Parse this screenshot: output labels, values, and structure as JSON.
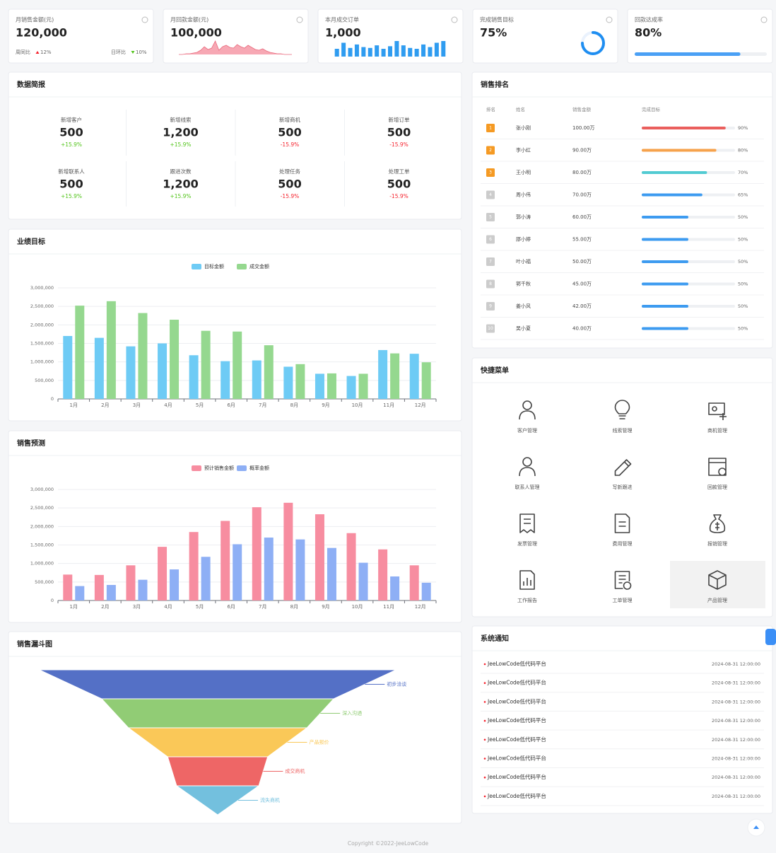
{
  "stat_cards": [
    {
      "title": "月销售金额(元)",
      "value": "120,000",
      "footer": [
        {
          "label": "周同比",
          "change": "12%",
          "trend": "up"
        },
        {
          "label": "日环比",
          "change": "10%",
          "trend": "down"
        }
      ]
    },
    {
      "title": "月回款金额(元)",
      "value": "100,000",
      "sparkline": {
        "type": "area",
        "color": "#f48b9b",
        "values": [
          3,
          3,
          4,
          4,
          5,
          6,
          9,
          14,
          10,
          12,
          22,
          9,
          14,
          16,
          13,
          12,
          17,
          14,
          12,
          16,
          13,
          10,
          9,
          11,
          8,
          6,
          5,
          4,
          4,
          3,
          3,
          3
        ]
      }
    },
    {
      "title": "本月成交订单",
      "value": "1,000",
      "sparkline": {
        "type": "bar",
        "color": "#2f9cf0",
        "values": [
          9,
          16,
          10,
          14,
          11,
          10,
          13,
          9,
          12,
          18,
          13,
          10,
          9,
          14,
          11,
          16,
          18
        ]
      }
    },
    {
      "title": "完成销售目标",
      "value": "75%",
      "progress": {
        "type": "ring",
        "value": 75,
        "color": "#1f8ef1"
      }
    },
    {
      "title": "回款达成率",
      "value": "80%",
      "progress": {
        "type": "bar",
        "value": 80,
        "color": "#4aa0f5"
      }
    }
  ],
  "data_report": {
    "title": "数据简报",
    "items": [
      {
        "label": "新增客户",
        "value": "500",
        "change": "+15.9%",
        "trend": "up"
      },
      {
        "label": "新增线索",
        "value": "1,200",
        "change": "+15.9%",
        "trend": "up"
      },
      {
        "label": "新增商机",
        "value": "500",
        "change": "-15.9%",
        "trend": "down"
      },
      {
        "label": "新增订单",
        "value": "500",
        "change": "-15.9%",
        "trend": "down"
      },
      {
        "label": "新增联系人",
        "value": "500",
        "change": "+15.9%",
        "trend": "up"
      },
      {
        "label": "跟进次数",
        "value": "1,200",
        "change": "+15.9%",
        "trend": "up"
      },
      {
        "label": "处理任务",
        "value": "500",
        "change": "-15.9%",
        "trend": "down"
      },
      {
        "label": "处理工单",
        "value": "500",
        "change": "-15.9%",
        "trend": "down"
      }
    ]
  },
  "ranking": {
    "title": "销售排名",
    "columns": [
      "排名",
      "姓名",
      "销售金额",
      "完成目标"
    ],
    "rows": [
      {
        "rank": "1",
        "name": "张小刚",
        "amount": "100.00万",
        "progress": {
          "value": 90,
          "label": "90%"
        },
        "badge_color": "#f59a23",
        "bar_color": "#ea5f5d"
      },
      {
        "rank": "2",
        "name": "李小红",
        "amount": "90.00万",
        "progress": {
          "value": 80,
          "label": "80%"
        },
        "badge_color": "#f59a23",
        "bar_color": "#f6a24c"
      },
      {
        "rank": "3",
        "name": "王小明",
        "amount": "80.00万",
        "progress": {
          "value": 70,
          "label": "70%"
        },
        "badge_color": "#f59a23",
        "bar_color": "#52cbd2"
      },
      {
        "rank": "4",
        "name": "周小伟",
        "amount": "70.00万",
        "progress": {
          "value": 65,
          "label": "65%"
        },
        "badge_color": "#cccccc",
        "bar_color": "#3d9bf0"
      },
      {
        "rank": "5",
        "name": "郭小涛",
        "amount": "60.00万",
        "progress": {
          "value": 50,
          "label": "50%"
        },
        "badge_color": "#cccccc",
        "bar_color": "#3d9bf0"
      },
      {
        "rank": "6",
        "name": "邵小婷",
        "amount": "55.00万",
        "progress": {
          "value": 50,
          "label": "50%"
        },
        "badge_color": "#cccccc",
        "bar_color": "#3d9bf0"
      },
      {
        "rank": "7",
        "name": "叶小福",
        "amount": "50.00万",
        "progress": {
          "value": 50,
          "label": "50%"
        },
        "badge_color": "#cccccc",
        "bar_color": "#3d9bf0"
      },
      {
        "rank": "8",
        "name": "郭千秋",
        "amount": "45.00万",
        "progress": {
          "value": 50,
          "label": "50%"
        },
        "badge_color": "#cccccc",
        "bar_color": "#3d9bf0"
      },
      {
        "rank": "9",
        "name": "姜小风",
        "amount": "42.00万",
        "progress": {
          "value": 50,
          "label": "50%"
        },
        "badge_color": "#cccccc",
        "bar_color": "#3d9bf0"
      },
      {
        "rank": "10",
        "name": "吴小夏",
        "amount": "40.00万",
        "progress": {
          "value": 50,
          "label": "50%"
        },
        "badge_color": "#cccccc",
        "bar_color": "#3d9bf0"
      }
    ]
  },
  "chart_data": [
    {
      "type": "bar",
      "title": "业绩目标",
      "categories": [
        "1月",
        "2月",
        "3月",
        "4月",
        "5月",
        "6月",
        "7月",
        "8月",
        "9月",
        "10月",
        "11月",
        "12月"
      ],
      "series": [
        {
          "name": "目标金额",
          "color": "#6ecbf5",
          "values": [
            1700000,
            1650000,
            1420000,
            1500000,
            1180000,
            1020000,
            1040000,
            870000,
            680000,
            620000,
            1320000,
            1220000
          ]
        },
        {
          "name": "成交金额",
          "color": "#95d88f",
          "values": [
            2520000,
            2640000,
            2320000,
            2140000,
            1840000,
            1820000,
            1450000,
            940000,
            690000,
            680000,
            1230000,
            990000
          ]
        }
      ],
      "ylim": [
        0,
        3000000
      ],
      "yticks": [
        0,
        {
          "value": 500000,
          "label": "500,000"
        },
        {
          "value": 1000000,
          "label": "1,000,000"
        },
        {
          "value": 1500000,
          "label": "1,500,000"
        },
        {
          "value": 2000000,
          "label": "2,000,000"
        },
        {
          "value": 2500000,
          "label": "2,500,000"
        },
        {
          "value": 3000000,
          "label": "3,000,000"
        }
      ],
      "grid": true
    },
    {
      "type": "bar",
      "title": "销售预测",
      "categories": [
        "1月",
        "2月",
        "3月",
        "4月",
        "5月",
        "6月",
        "7月",
        "8月",
        "9月",
        "10月",
        "11月",
        "12月"
      ],
      "series": [
        {
          "name": "预计销售金额",
          "color": "#f78da0",
          "values": [
            700000,
            690000,
            950000,
            1450000,
            1850000,
            2150000,
            2520000,
            2640000,
            2330000,
            1820000,
            1380000,
            950000
          ]
        },
        {
          "name": "概率金额",
          "color": "#8eaff5",
          "values": [
            390000,
            420000,
            560000,
            840000,
            1180000,
            1520000,
            1700000,
            1650000,
            1420000,
            1020000,
            650000,
            480000
          ]
        }
      ],
      "ylim": [
        0,
        3000000
      ],
      "yticks": [
        0,
        {
          "value": 500000,
          "label": "500,000"
        },
        {
          "value": 1000000,
          "label": "1,000,000"
        },
        {
          "value": 1500000,
          "label": "1,500,000"
        },
        {
          "value": 2000000,
          "label": "2,000,000"
        },
        {
          "value": 2500000,
          "label": "2,500,000"
        },
        {
          "value": 3000000,
          "label": "3,000,000"
        }
      ],
      "grid": true
    },
    {
      "type": "funnel",
      "title": "销售漏斗图",
      "categories": [
        "初步洽谈",
        "深入沟通",
        "产品报价",
        "成交商机",
        "流失商机"
      ],
      "values": [
        100,
        65,
        50,
        28,
        23
      ],
      "colors": [
        "#5470c6",
        "#91cc75",
        "#fac858",
        "#ee6666",
        "#73c0de"
      ]
    }
  ],
  "quick_menu": {
    "title": "快捷菜单",
    "items": [
      "客户管理",
      "线索管理",
      "商机管理",
      "联系人管理",
      "写新跟进",
      "回款管理",
      "发票管理",
      "费用管理",
      "报销管理",
      "工作报告",
      "工单管理",
      "产品管理"
    ]
  },
  "notices": {
    "title": "系统通知",
    "items": [
      {
        "text": "JeeLowCode低代码平台",
        "time": "2024-08-31 12:00:00"
      },
      {
        "text": "JeeLowCode低代码平台",
        "time": "2024-08-31 12:00:00"
      },
      {
        "text": "JeeLowCode低代码平台",
        "time": "2024-08-31 12:00:00"
      },
      {
        "text": "JeeLowCode低代码平台",
        "time": "2024-08-31 12:00:00"
      },
      {
        "text": "JeeLowCode低代码平台",
        "time": "2024-08-31 12:00:00"
      },
      {
        "text": "JeeLowCode低代码平台",
        "time": "2024-08-31 12:00:00"
      },
      {
        "text": "JeeLowCode低代码平台",
        "time": "2024-08-31 12:00:00"
      },
      {
        "text": "JeeLowCode低代码平台",
        "time": "2024-08-31 12:00:00"
      }
    ]
  },
  "footer": "Copyright ©2022-JeeLowCode"
}
